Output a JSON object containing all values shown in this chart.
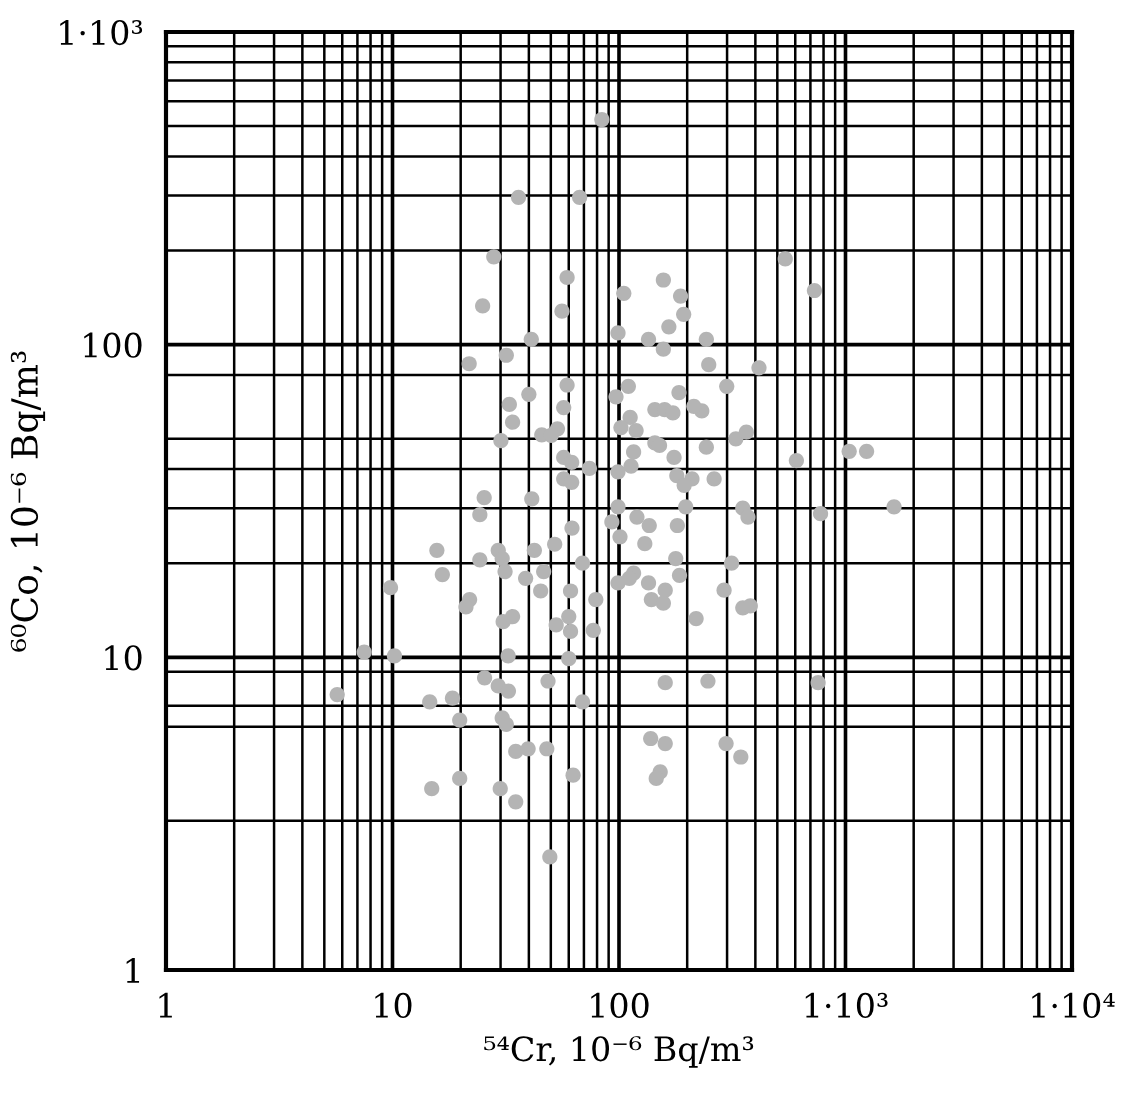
{
  "chart_data": {
    "type": "scatter",
    "xlabel": "⁵⁴Cr, 10⁻⁶ Bq/m³",
    "ylabel": "⁶⁰Co, 10⁻⁶ Bq/m³",
    "log": "xy",
    "grid": true,
    "marker": "circle",
    "xlim": [
      1,
      10000
    ],
    "ylim": [
      1,
      1000
    ],
    "xticks": [
      1,
      {
        "value": 2,
        "label": null
      },
      {
        "value": 3,
        "label": null
      },
      {
        "value": 4,
        "label": null
      },
      {
        "value": 5,
        "label": null
      },
      {
        "value": 6,
        "label": null
      },
      {
        "value": 7,
        "label": null
      },
      {
        "value": 8,
        "label": null
      },
      {
        "value": 9,
        "label": null
      },
      10,
      {
        "value": 20,
        "label": null
      },
      {
        "value": 30,
        "label": null
      },
      {
        "value": 40,
        "label": null
      },
      {
        "value": 50,
        "label": null
      },
      {
        "value": 60,
        "label": null
      },
      {
        "value": 70,
        "label": null
      },
      {
        "value": 80,
        "label": null
      },
      {
        "value": 90,
        "label": null
      },
      100,
      {
        "value": 200,
        "label": null
      },
      {
        "value": 300,
        "label": null
      },
      {
        "value": 400,
        "label": null
      },
      {
        "value": 500,
        "label": null
      },
      {
        "value": 600,
        "label": null
      },
      {
        "value": 700,
        "label": null
      },
      {
        "value": 800,
        "label": null
      },
      {
        "value": 900,
        "label": null
      },
      {
        "value": 1000,
        "label": "1·10³"
      },
      {
        "value": 2000,
        "label": null
      },
      {
        "value": 3000,
        "label": null
      },
      {
        "value": 4000,
        "label": null
      },
      {
        "value": 5000,
        "label": null
      },
      {
        "value": 6000,
        "label": null
      },
      {
        "value": 7000,
        "label": null
      },
      {
        "value": 8000,
        "label": null
      },
      {
        "value": 9000,
        "label": null
      },
      {
        "value": 10000,
        "label": "1·10⁴"
      }
    ],
    "yticks": [
      1,
      {
        "value": 3,
        "label": null
      },
      {
        "value": 6,
        "label": null
      },
      {
        "value": 7,
        "label": null
      },
      {
        "value": 9,
        "label": null
      },
      10,
      {
        "value": 20,
        "label": null
      },
      {
        "value": 30,
        "label": null
      },
      {
        "value": 40,
        "label": null
      },
      {
        "value": 50,
        "label": null
      },
      {
        "value": 80,
        "label": null
      },
      100,
      {
        "value": 200,
        "label": null
      },
      {
        "value": 300,
        "label": null
      },
      {
        "value": 400,
        "label": null
      },
      {
        "value": 500,
        "label": null
      },
      {
        "value": 600,
        "label": null
      },
      {
        "value": 700,
        "label": null
      },
      {
        "value": 800,
        "label": null
      },
      {
        "value": 900,
        "label": null
      },
      {
        "value": 1000,
        "label": "1·10³"
      }
    ],
    "series": [
      {
        "color": "#b4b4b4",
        "x": [
          84,
          36,
          67,
          28,
          59,
          25,
          56,
          41,
          31.8,
          21.8,
          59,
          40,
          32.8,
          57,
          33.9,
          45.6,
          53.5,
          30.1,
          50.2,
          57,
          61.8,
          74,
          57,
          61.8,
          25.4,
          41.2,
          24.3,
          542,
          729,
          157,
          105,
          187,
          193,
          166,
          99,
          135,
          243,
          157,
          249,
          415,
          299,
          110,
          184,
          97,
          232,
          214,
          144,
          159,
          173,
          112,
          102,
          119,
          144,
          151,
          243,
          328,
          365,
          1038,
          1239,
          116,
          175,
          607,
          113,
          99,
          180,
          210,
          263,
          194,
          62,
          15.7,
          29.3,
          42.3,
          52,
          24.3,
          30.5,
          16.6,
          31.4,
          38.7,
          46.5,
          69,
          9.8,
          45.1,
          61.1,
          21.9,
          21.1,
          30.8,
          33.9,
          52.8,
          60,
          61.1,
          7.5,
          10.2,
          32.4,
          60,
          25.5,
          29.3,
          32.5,
          48.6,
          5.7,
          14.6,
          18.4,
          19.8,
          30.5,
          31.8,
          69,
          35,
          39.7,
          48,
          19.8,
          14.9,
          29.9,
          35,
          62.7,
          49.5,
          99,
          197,
          352,
          371,
          776,
          1638,
          93,
          120,
          136,
          181,
          101,
          130,
          178,
          314,
          185,
          116,
          99,
          111,
          135,
          160,
          139,
          157,
          79,
          291,
          352,
          380,
          219,
          77,
          160,
          247,
          757,
          138,
          160,
          297,
          345,
          152,
          146
        ],
        "values": [
          525,
          296,
          296,
          191,
          164,
          133,
          128,
          104,
          92.5,
          86.9,
          74.3,
          69.4,
          64.4,
          62.9,
          56.5,
          51.5,
          53.8,
          49.3,
          51.3,
          43.6,
          42,
          40.2,
          37.2,
          36.3,
          32.4,
          32.1,
          28.6,
          188,
          149,
          161,
          146,
          143,
          125,
          114,
          109,
          104,
          104,
          96.7,
          86.3,
          84.3,
          73.6,
          73.6,
          70.3,
          68.1,
          61.4,
          63.5,
          62,
          62,
          60.5,
          58.5,
          54.3,
          53.1,
          48.5,
          47.6,
          47,
          50,
          52.5,
          45.6,
          45.6,
          45.4,
          43.6,
          42.6,
          40.9,
          39.2,
          38.1,
          37.2,
          37.2,
          35.5,
          25.9,
          22,
          22,
          22,
          23,
          20.5,
          20.7,
          18.4,
          18.8,
          17.9,
          18.8,
          20,
          16.7,
          16.3,
          16.3,
          15.3,
          14.5,
          13,
          13.5,
          12.7,
          13.5,
          12.1,
          10.4,
          10.1,
          10.1,
          9.9,
          8.6,
          8.1,
          7.8,
          8.4,
          7.6,
          7.2,
          7.4,
          6.3,
          6.4,
          6.1,
          7.2,
          5,
          5.1,
          5.1,
          4.1,
          3.8,
          3.8,
          3.45,
          4.2,
          2.3,
          30.3,
          30.3,
          30,
          28.1,
          28.8,
          30.3,
          27.1,
          28.1,
          26.4,
          26.4,
          24.3,
          23.1,
          20.7,
          20,
          18.3,
          18.6,
          17.3,
          17.9,
          17.3,
          16.4,
          15.3,
          14.9,
          15.3,
          16.4,
          14.4,
          14.6,
          13.3,
          12.2,
          8.3,
          8.4,
          8.3,
          5.5,
          5.3,
          5.3,
          4.8,
          4.3,
          4.1
        ]
      }
    ]
  }
}
